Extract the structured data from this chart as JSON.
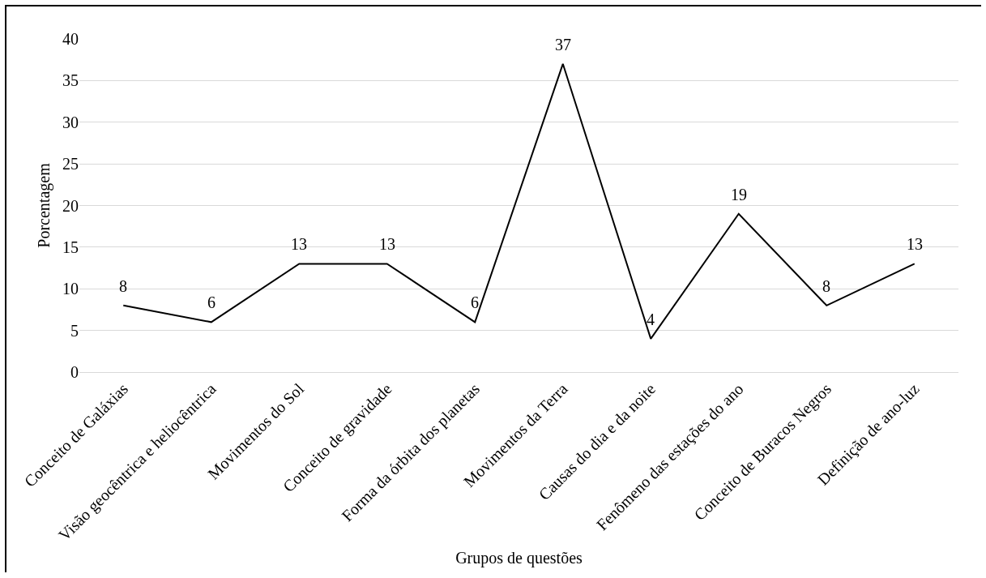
{
  "chart_data": {
    "type": "line",
    "xlabel": "Grupos de questões",
    "ylabel": "Porcentagem",
    "categories": [
      "Conceito de Galáxias",
      "Visão geocêntrica e heliocêntrica",
      "Movimentos do Sol",
      "Conceito de gravidade",
      "Forma da órbita dos planetas",
      "Movimentos da Terra",
      "Causas do dia e da noite",
      "Fenômeno das estações do ano",
      "Conceito de Buracos Negros",
      "Definição de ano-luz"
    ],
    "series": [
      {
        "color": "#000000",
        "values": [
          8,
          6,
          13,
          13,
          6,
          37,
          4,
          19,
          8,
          13
        ]
      }
    ],
    "ylim": [
      0,
      40
    ],
    "yticks": [
      0,
      5,
      10,
      15,
      20,
      25,
      30,
      35,
      40
    ],
    "grid": "y",
    "data_labels": true,
    "marker": "none",
    "line_style": "solid"
  }
}
